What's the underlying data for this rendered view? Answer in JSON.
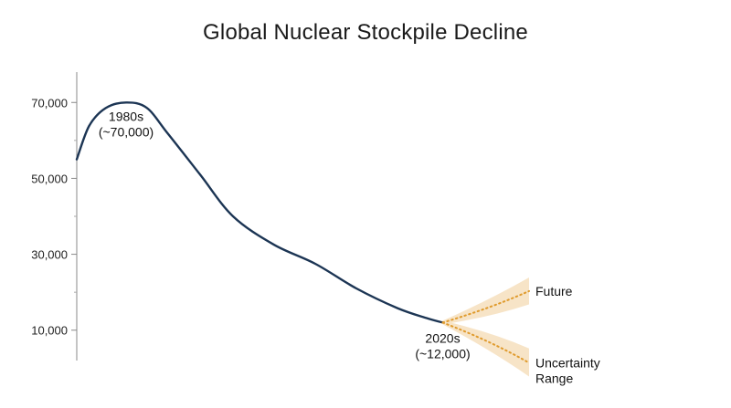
{
  "chart_data": {
    "type": "line",
    "title": "Global Nuclear Stockpile Decline",
    "y_ticks": [
      {
        "value": 70000,
        "label": "70,000"
      },
      {
        "value": 50000,
        "label": "50,000"
      },
      {
        "value": 30000,
        "label": "30,000"
      },
      {
        "value": 10000,
        "label": "10,000"
      }
    ],
    "minor_ticks": [
      80000,
      60000,
      40000,
      20000,
      0
    ],
    "ylim": [
      2000,
      78000
    ],
    "xlim": [
      0,
      100
    ],
    "grid": false,
    "series": [
      {
        "points": [
          {
            "x": 0,
            "y": 55000
          },
          {
            "x": 3,
            "y": 63800
          },
          {
            "x": 7,
            "y": 68500
          },
          {
            "x": 12,
            "y": 70000
          },
          {
            "x": 17,
            "y": 68600
          },
          {
            "x": 22,
            "y": 62000
          },
          {
            "x": 30,
            "y": 51000
          },
          {
            "x": 38,
            "y": 40000
          },
          {
            "x": 48,
            "y": 32500
          },
          {
            "x": 58,
            "y": 27500
          },
          {
            "x": 68,
            "y": 21000
          },
          {
            "x": 78,
            "y": 15800
          },
          {
            "x": 85,
            "y": 13200
          },
          {
            "x": 89,
            "y": 12000
          }
        ],
        "color": "#1c3554"
      }
    ],
    "projections": [
      {
        "start": {
          "x": 89,
          "y": 12000
        },
        "end": {
          "x": 110,
          "y": 20300
        },
        "band_end_low": 16800,
        "band_end_high": 23900
      },
      {
        "start": {
          "x": 89,
          "y": 12000
        },
        "end": {
          "x": 110,
          "y": 1400
        },
        "band_end_low": -2200,
        "band_end_high": 5200
      }
    ],
    "projection_color": "#e09b2d",
    "band_color": "#f7e3c4",
    "annotations": [
      {
        "lines": [
          "1980s",
          "(~70,000)"
        ],
        "x": 12,
        "y": 70000
      },
      {
        "lines": [
          "2020s",
          "(~12,000)"
        ],
        "x": 89,
        "y": 12000
      }
    ],
    "projection_labels": [
      {
        "lines": [
          "Future"
        ]
      },
      {
        "lines": [
          "Uncertainty",
          "Range"
        ]
      }
    ]
  }
}
